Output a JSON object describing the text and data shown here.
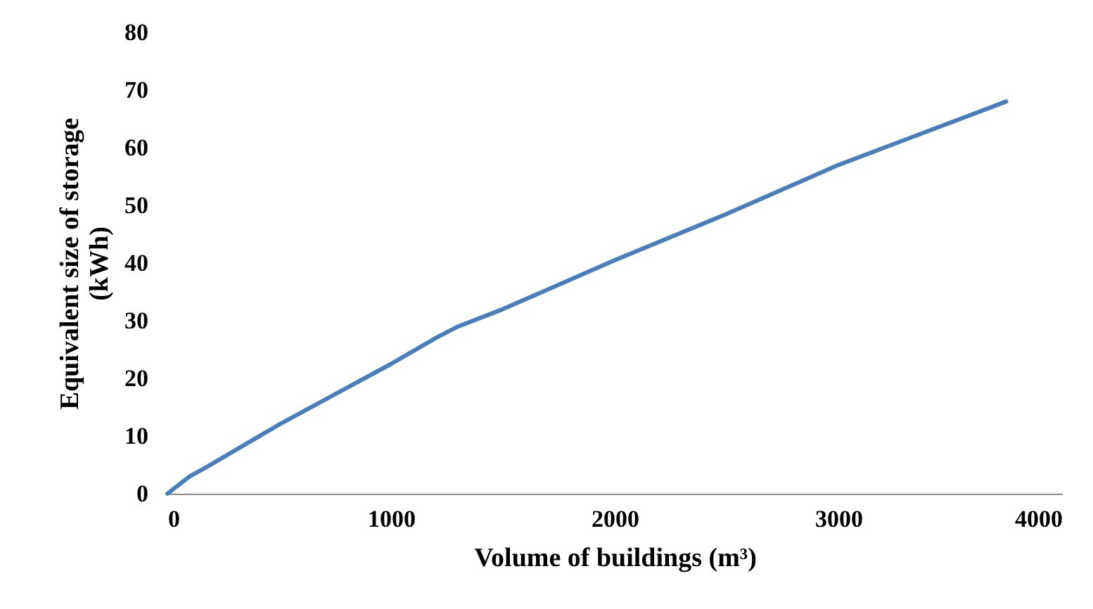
{
  "chart_data": {
    "type": "line",
    "xlabel": "Volume of buildings (m³)",
    "ylabel": "Equivalent size of storage (kWh)",
    "x": [
      0,
      100,
      170,
      500,
      1000,
      1200,
      1300,
      1500,
      2000,
      2500,
      3000,
      3750
    ],
    "series": [
      {
        "color": "#4a7ebb",
        "values": [
          0,
          3,
          4.5,
          12,
          22.5,
          27,
          29,
          32,
          40.5,
          48.5,
          57,
          68
        ]
      }
    ],
    "xlim": [
      0,
      4000
    ],
    "xticks": [
      0,
      1000,
      2000,
      3000,
      4000
    ],
    "ylim": [
      0,
      80
    ],
    "yticks": [
      0,
      10,
      20,
      30,
      40,
      50,
      60,
      70,
      80
    ],
    "grid": false,
    "legend": false,
    "marker": "none",
    "line_style": "solid"
  }
}
